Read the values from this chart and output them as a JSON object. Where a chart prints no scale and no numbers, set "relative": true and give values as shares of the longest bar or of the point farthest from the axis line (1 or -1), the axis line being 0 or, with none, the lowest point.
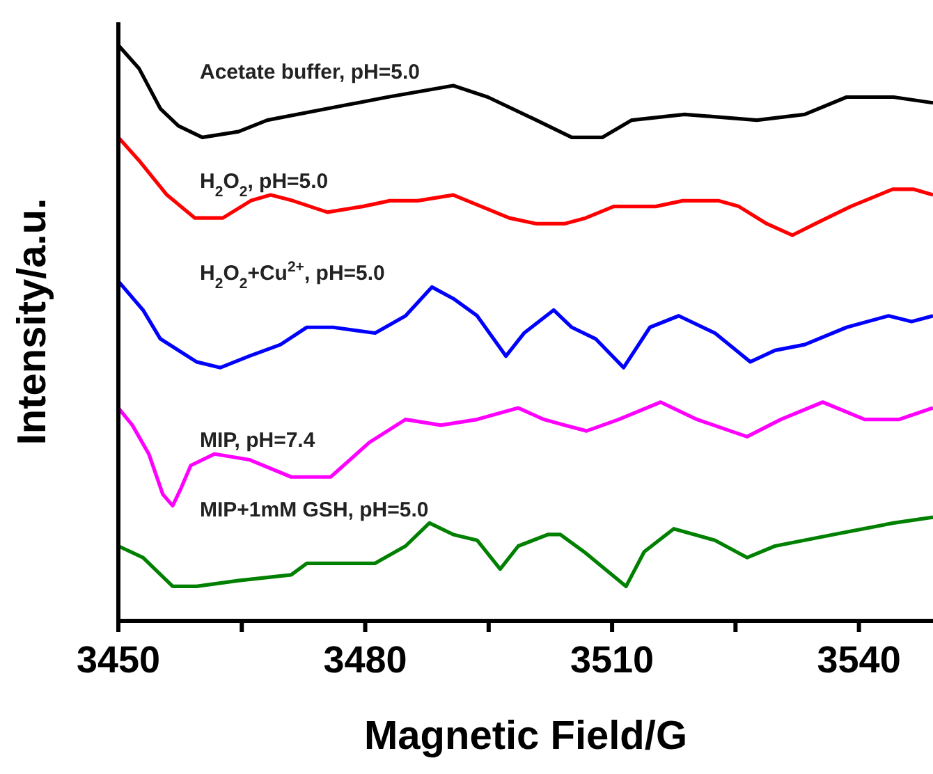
{
  "chart_data": {
    "type": "line",
    "relative": true,
    "xlabel": "Magnetic Field/G",
    "ylabel": "Intensity/a.u.",
    "xlim": [
      3450,
      3549
    ],
    "xticks": [
      3450,
      {
        "value": 3465,
        "label": null
      },
      3480,
      {
        "value": 3495,
        "label": null
      },
      3510,
      {
        "value": 3525,
        "label": null
      },
      3540
    ],
    "series": [
      {
        "name": "Acetate buffer, pH=5.0",
        "color": "#000000",
        "x": [
          3450,
          3452.5,
          3455.1,
          3457.3,
          3460.2,
          3464.6,
          3468.1,
          3475.4,
          3482.7,
          3490.7,
          3494.9,
          3500.8,
          3505.1,
          3508.8,
          3512.4,
          3518.8,
          3527.6,
          3533.4,
          3538.5,
          3544.2,
          3549
        ],
        "values": [
          1,
          0.96,
          0.89,
          0.86,
          0.84,
          0.85,
          0.87,
          0.89,
          0.91,
          0.93,
          0.91,
          0.87,
          0.84,
          0.84,
          0.87,
          0.88,
          0.87,
          0.88,
          0.91,
          0.91,
          0.9
        ]
      },
      {
        "name": "H$_{2}$O$_{2}$, pH=5.0",
        "color": "#ff0000",
        "x": [
          3450,
          3452.5,
          3455.9,
          3459.3,
          3462.7,
          3466.1,
          3468.5,
          3471.2,
          3475.4,
          3479.7,
          3483,
          3486.4,
          3490.7,
          3494.1,
          3497.5,
          3500.8,
          3504.2,
          3506.8,
          3510.2,
          3515.3,
          3518.6,
          3522.9,
          3525.4,
          3528.8,
          3531.9,
          3534.7,
          3539,
          3544.1,
          3546.6,
          3549
        ],
        "values": [
          0.84,
          0.8,
          0.74,
          0.7,
          0.7,
          0.73,
          0.74,
          0.73,
          0.71,
          0.72,
          0.73,
          0.73,
          0.74,
          0.72,
          0.7,
          0.69,
          0.69,
          0.7,
          0.72,
          0.72,
          0.73,
          0.73,
          0.72,
          0.69,
          0.67,
          0.69,
          0.72,
          0.75,
          0.75,
          0.74
        ]
      },
      {
        "name": "H$_{2}$O$_{2}$+Cu$^{2+}$, pH=5.0",
        "color": "#0000ff",
        "x": [
          3450,
          3453,
          3455.1,
          3459.5,
          3462.4,
          3465.9,
          3469.7,
          3472.9,
          3476.1,
          3481.2,
          3484.9,
          3488.1,
          3490.7,
          3493.6,
          3497.1,
          3499.3,
          3502.9,
          3505.1,
          3508,
          3511.4,
          3514.6,
          3518.1,
          3522.5,
          3526.8,
          3529.8,
          3533.4,
          3538.5,
          3543.6,
          3546.4,
          3549
        ],
        "values": [
          0.59,
          0.54,
          0.49,
          0.45,
          0.44,
          0.46,
          0.48,
          0.51,
          0.51,
          0.5,
          0.53,
          0.58,
          0.56,
          0.53,
          0.46,
          0.5,
          0.54,
          0.51,
          0.49,
          0.44,
          0.51,
          0.53,
          0.5,
          0.45,
          0.47,
          0.48,
          0.51,
          0.53,
          0.52,
          0.53
        ]
      },
      {
        "name": "MIP, pH=7.4",
        "color": "#ff00ff",
        "x": [
          3450,
          3451.7,
          3453.7,
          3455.4,
          3456.6,
          3457.6,
          3458.8,
          3461.7,
          3465.9,
          3471,
          3475.8,
          3480.5,
          3484.9,
          3489.2,
          3493.6,
          3498.6,
          3501.7,
          3504.2,
          3506.9,
          3510.8,
          3515.9,
          3520.3,
          3526.4,
          3530.5,
          3535.6,
          3540.7,
          3544.9,
          3549
        ],
        "values": [
          0.37,
          0.34,
          0.29,
          0.22,
          0.2,
          0.23,
          0.27,
          0.29,
          0.28,
          0.25,
          0.25,
          0.31,
          0.35,
          0.34,
          0.35,
          0.37,
          0.35,
          0.34,
          0.33,
          0.35,
          0.38,
          0.35,
          0.32,
          0.35,
          0.38,
          0.35,
          0.35,
          0.37
        ]
      },
      {
        "name": "MIP+1mM GSH, pH=5.0",
        "color": "#008000",
        "x": [
          3450,
          3453,
          3456.6,
          3459.5,
          3464.6,
          3471,
          3472.9,
          3476.1,
          3481.2,
          3484.9,
          3487.8,
          3490.7,
          3493.6,
          3496.4,
          3498.6,
          3502.2,
          3503.7,
          3506.6,
          3511.7,
          3513.9,
          3517.5,
          3522.5,
          3526.4,
          3529.8,
          3536.9,
          3544.2,
          3549
        ],
        "values": [
          0.13,
          0.11,
          0.06,
          0.06,
          0.07,
          0.08,
          0.1,
          0.1,
          0.1,
          0.13,
          0.17,
          0.15,
          0.14,
          0.09,
          0.13,
          0.15,
          0.15,
          0.12,
          0.06,
          0.12,
          0.16,
          0.14,
          0.11,
          0.13,
          0.15,
          0.17,
          0.18
        ]
      }
    ]
  }
}
